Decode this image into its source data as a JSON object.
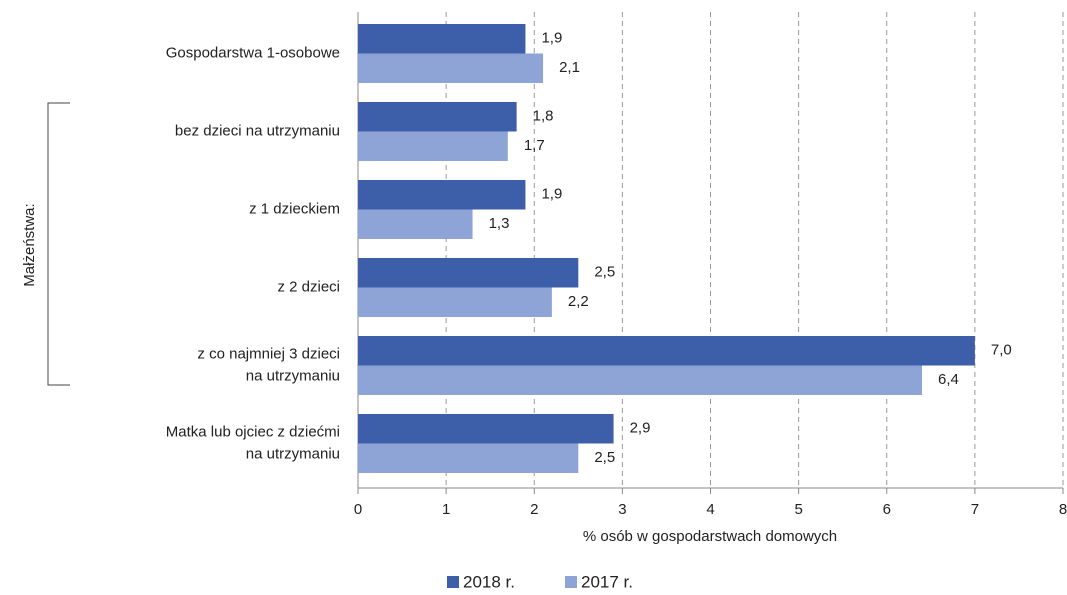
{
  "chart_data": {
    "type": "bar",
    "orientation": "horizontal",
    "categories": [
      "Gospodarstwa 1-osobowe",
      "bez dzieci na utrzymaniu",
      "z 1 dzieckiem",
      "z 2 dzieci",
      "z co najmniej 3 dzieci\nna utrzymaniu",
      "Matka lub ojciec z dziećmi\nna utrzymaniu"
    ],
    "series": [
      {
        "name": "2018 r.",
        "color": "#3d5ea8",
        "values": [
          1.9,
          1.8,
          1.9,
          2.5,
          7.0,
          2.9
        ],
        "value_labels": [
          "1,9",
          "1,8",
          "1,9",
          "2,5",
          "7,0",
          "2,9"
        ]
      },
      {
        "name": "2017 r.",
        "color": "#8fa4d6",
        "values": [
          2.1,
          1.7,
          1.3,
          2.2,
          6.4,
          2.5
        ],
        "value_labels": [
          "2,1",
          "1,7",
          "1,3",
          "2,2",
          "6,4",
          "2,5"
        ]
      }
    ],
    "xlim": [
      0,
      8
    ],
    "xticks": [
      0,
      1,
      2,
      3,
      4,
      5,
      6,
      7,
      8
    ],
    "grid": true,
    "x_label": "% osób w gospodarstwach domowych",
    "annotation": "Małżeństwa:",
    "legend": "bottom"
  }
}
